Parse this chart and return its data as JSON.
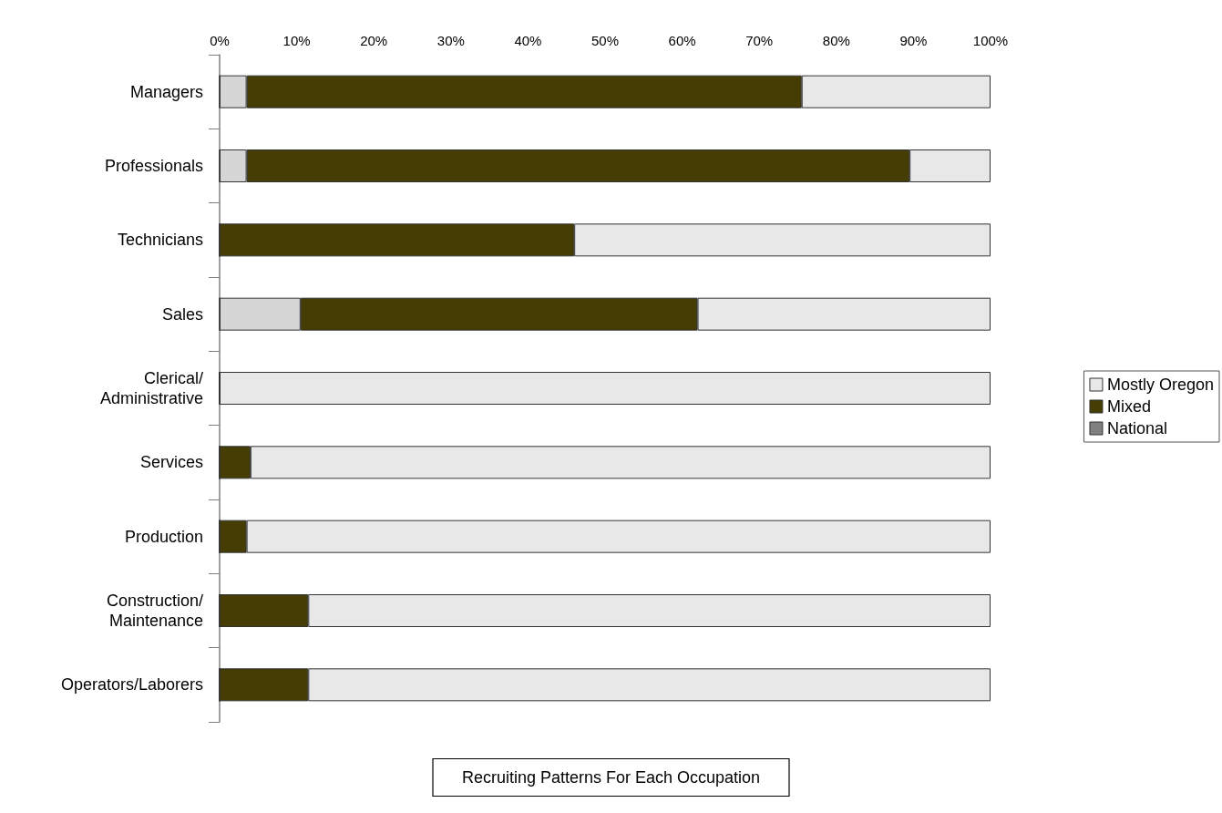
{
  "chart_data": {
    "type": "bar",
    "orientation": "horizontal",
    "stacked": true,
    "title": "Recruiting Patterns For Each Occupation",
    "categories": [
      "Managers",
      "Professionals",
      "Technicians",
      "Sales",
      "Clerical/Administrative",
      "Services",
      "Production",
      "Construction/Maintenance",
      "Operators/Laborers"
    ],
    "series": [
      {
        "name": "National",
        "color": "#808080",
        "values": [
          0,
          0,
          0,
          0,
          0,
          0,
          0,
          0,
          0
        ]
      },
      {
        "color": "#d6d6d6",
        "values": [
          3.5,
          3.5,
          0,
          10.5,
          0,
          0,
          0,
          0,
          0
        ]
      },
      {
        "name": "Mixed",
        "color": "#453d04",
        "values": [
          72,
          86,
          46,
          51.5,
          0,
          4,
          3.5,
          11.5,
          11.5
        ]
      },
      {
        "name": "Mostly Oregon",
        "color": "#e8e8e8",
        "values": [
          24.5,
          10.5,
          54,
          38,
          100,
          96,
          96.5,
          88.5,
          88.5
        ]
      }
    ],
    "xlim": [
      0,
      100
    ],
    "xticks": [
      {
        "value": 0,
        "label": "0%"
      },
      {
        "value": 10,
        "label": "10%"
      },
      {
        "value": 20,
        "label": "20%"
      },
      {
        "value": 30,
        "label": "30%"
      },
      {
        "value": 40,
        "label": "40%"
      },
      {
        "value": 50,
        "label": "50%"
      },
      {
        "value": 60,
        "label": "60%"
      },
      {
        "value": 70,
        "label": "70%"
      },
      {
        "value": 80,
        "label": "80%"
      },
      {
        "value": 90,
        "label": "90%"
      },
      {
        "value": 100,
        "label": "100%"
      }
    ],
    "grid": false,
    "legend": "right"
  }
}
